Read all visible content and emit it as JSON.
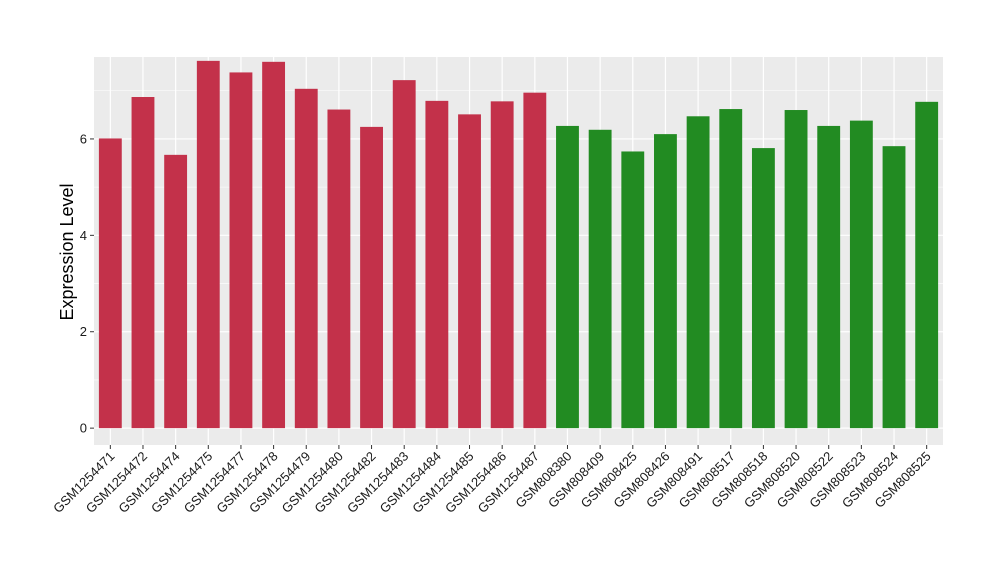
{
  "chart_data": {
    "type": "bar",
    "title": "",
    "xlabel": "",
    "ylabel": "Expression Level",
    "ylim": [
      -0.35,
      7.7
    ],
    "yticks": [
      0,
      2,
      4,
      6
    ],
    "grid": true,
    "categories": [
      "GSM1254471",
      "GSM1254472",
      "GSM1254474",
      "GSM1254475",
      "GSM1254477",
      "GSM1254478",
      "GSM1254479",
      "GSM1254480",
      "GSM1254482",
      "GSM1254483",
      "GSM1254484",
      "GSM1254485",
      "GSM1254486",
      "GSM1254487",
      "GSM808380",
      "GSM808409",
      "GSM808425",
      "GSM808426",
      "GSM808491",
      "GSM808517",
      "GSM808518",
      "GSM808520",
      "GSM808522",
      "GSM808523",
      "GSM808524",
      "GSM808525"
    ],
    "values": [
      6.01,
      6.87,
      5.67,
      7.62,
      7.38,
      7.6,
      7.04,
      6.61,
      6.25,
      7.22,
      6.79,
      6.51,
      6.78,
      6.96,
      6.27,
      6.19,
      5.74,
      6.1,
      6.47,
      6.62,
      5.81,
      6.6,
      6.27,
      6.38,
      5.85,
      6.77
    ],
    "bar_colors": [
      "#C3314A",
      "#C3314A",
      "#C3314A",
      "#C3314A",
      "#C3314A",
      "#C3314A",
      "#C3314A",
      "#C3314A",
      "#C3314A",
      "#C3314A",
      "#C3314A",
      "#C3314A",
      "#C3314A",
      "#C3314A",
      "#228B22",
      "#228B22",
      "#228B22",
      "#228B22",
      "#228B22",
      "#228B22",
      "#228B22",
      "#228B22",
      "#228B22",
      "#228B22",
      "#228B22",
      "#228B22"
    ],
    "panel_background": "#EBEBEB",
    "grid_color": "#FFFFFF"
  }
}
